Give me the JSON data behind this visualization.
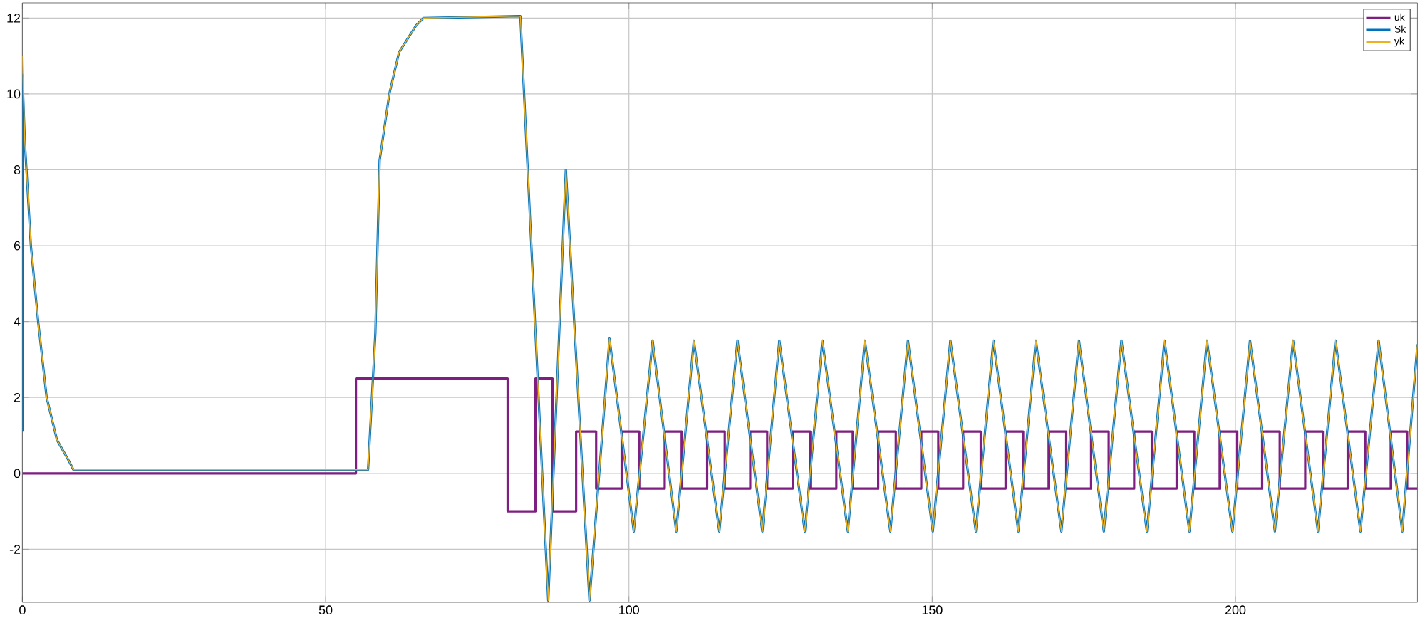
{
  "chart_data": {
    "type": "line",
    "xlim": [
      0,
      230
    ],
    "ylim": [
      -3.4,
      12.4
    ],
    "xticks": [
      0,
      50,
      100,
      150,
      200
    ],
    "yticks": [
      -2,
      0,
      2,
      4,
      6,
      8,
      10,
      12
    ],
    "grid": true,
    "legend": "top right",
    "series": [
      {
        "name": "uk",
        "type": "step",
        "color": "#7e1e80",
        "x": [
          0,
          55,
          80,
          84.6,
          87.4,
          91.3,
          94.6,
          98.8,
          101.7,
          105.9,
          108.7,
          112.9,
          115.8,
          120.0,
          122.8,
          127.0,
          129.9,
          134.2,
          136.9,
          141.1,
          144.0,
          148.2,
          151.0,
          155.1,
          158.0,
          162.1,
          165.0,
          169.2,
          172.1,
          176.2,
          179.1,
          183.3,
          186.2,
          190.3,
          193.2,
          197.4,
          200.3,
          204.4,
          207.3,
          211.5,
          214.4,
          218.5,
          221.4,
          225.6,
          228.3,
          230
        ],
        "values": [
          0,
          2.5,
          -1,
          2.5,
          -1,
          1.1,
          -0.4,
          1.1,
          -0.4,
          1.1,
          -0.4,
          1.1,
          -0.4,
          1.1,
          -0.4,
          1.1,
          -0.4,
          1.1,
          -0.4,
          1.1,
          -0.4,
          1.1,
          -0.4,
          1.1,
          -0.4,
          1.1,
          -0.4,
          1.1,
          -0.4,
          1.1,
          -0.4,
          1.1,
          -0.4,
          1.1,
          -0.4,
          1.1,
          -0.4,
          1.1,
          -0.4,
          1.1,
          -0.4,
          1.1,
          -0.4,
          1.1,
          -0.4,
          -0.4
        ]
      },
      {
        "name": "Sk",
        "color": "#0072bd",
        "x": [
          0,
          0,
          0.4,
          1.4,
          2.6,
          4.0,
          5.7,
          7.7,
          8.4,
          57.0,
          58.2,
          58.9,
          60.5,
          62.1,
          64.9,
          66.1,
          82.1,
          86.7,
          89.6,
          93.5,
          96.8,
          100.8,
          103.9,
          107.8,
          110.7,
          114.9,
          117.9,
          122.0,
          124.8,
          129.0,
          131.9,
          136.1,
          138.9,
          143.1,
          146.0,
          150.1,
          153.0,
          157.2,
          160.1,
          164.2,
          167.1,
          171.3,
          174.2,
          178.3,
          181.2,
          185.4,
          188.3,
          192.4,
          195.3,
          199.5,
          202.4,
          206.5,
          209.5,
          213.6,
          216.5,
          220.6,
          223.6,
          227.5,
          230
        ],
        "values": [
          1.1,
          10.5,
          8.75,
          6.0,
          4.0,
          2.0,
          0.88,
          0.32,
          0.1,
          0.1,
          3.7,
          8.25,
          10.0,
          11.1,
          11.8,
          12.0,
          12.05,
          -3.35,
          8.0,
          -3.35,
          3.55,
          -1.53,
          3.5,
          -1.53,
          3.5,
          -1.53,
          3.5,
          -1.53,
          3.5,
          -1.53,
          3.5,
          -1.53,
          3.5,
          -1.53,
          3.5,
          -1.53,
          3.5,
          -1.53,
          3.5,
          -1.53,
          3.5,
          -1.53,
          3.5,
          -1.53,
          3.5,
          -1.53,
          3.5,
          -1.53,
          3.5,
          -1.53,
          3.5,
          -1.53,
          3.5,
          -1.53,
          3.5,
          -1.53,
          3.5,
          -1.53,
          3.4
        ]
      },
      {
        "name": "yk",
        "color": "#edb120",
        "x": [
          0,
          0.4,
          1.4,
          2.6,
          4.0,
          5.7,
          7.7,
          8.4,
          57.0,
          58.2,
          58.9,
          60.5,
          62.1,
          64.9,
          66.1,
          82.1,
          86.7,
          89.6,
          93.5,
          96.8,
          100.8,
          103.9,
          107.8,
          110.7,
          114.9,
          117.9,
          122.0,
          124.8,
          129.0,
          131.9,
          136.1,
          138.9,
          143.1,
          146.0,
          150.1,
          153.0,
          157.2,
          160.1,
          164.2,
          167.1,
          171.3,
          174.2,
          178.3,
          181.2,
          185.4,
          188.3,
          192.4,
          195.3,
          199.5,
          202.4,
          206.5,
          209.5,
          213.6,
          216.5,
          220.6,
          223.6,
          227.5,
          230
        ],
        "values": [
          11.0,
          8.75,
          6.0,
          4.0,
          2.0,
          0.88,
          0.32,
          0.1,
          0.1,
          3.7,
          8.25,
          10.0,
          11.1,
          11.8,
          12.0,
          12.05,
          -3.35,
          8.0,
          -3.35,
          3.55,
          -1.53,
          3.5,
          -1.53,
          3.5,
          -1.53,
          3.5,
          -1.53,
          3.5,
          -1.53,
          3.5,
          -1.53,
          3.5,
          -1.53,
          3.5,
          -1.53,
          3.5,
          -1.53,
          3.5,
          -1.53,
          3.5,
          -1.53,
          3.5,
          -1.53,
          3.5,
          -1.53,
          3.5,
          -1.53,
          3.5,
          -1.53,
          3.5,
          -1.53,
          3.5,
          -1.53,
          3.5,
          -1.53,
          3.5,
          -1.53,
          3.4
        ]
      }
    ]
  }
}
